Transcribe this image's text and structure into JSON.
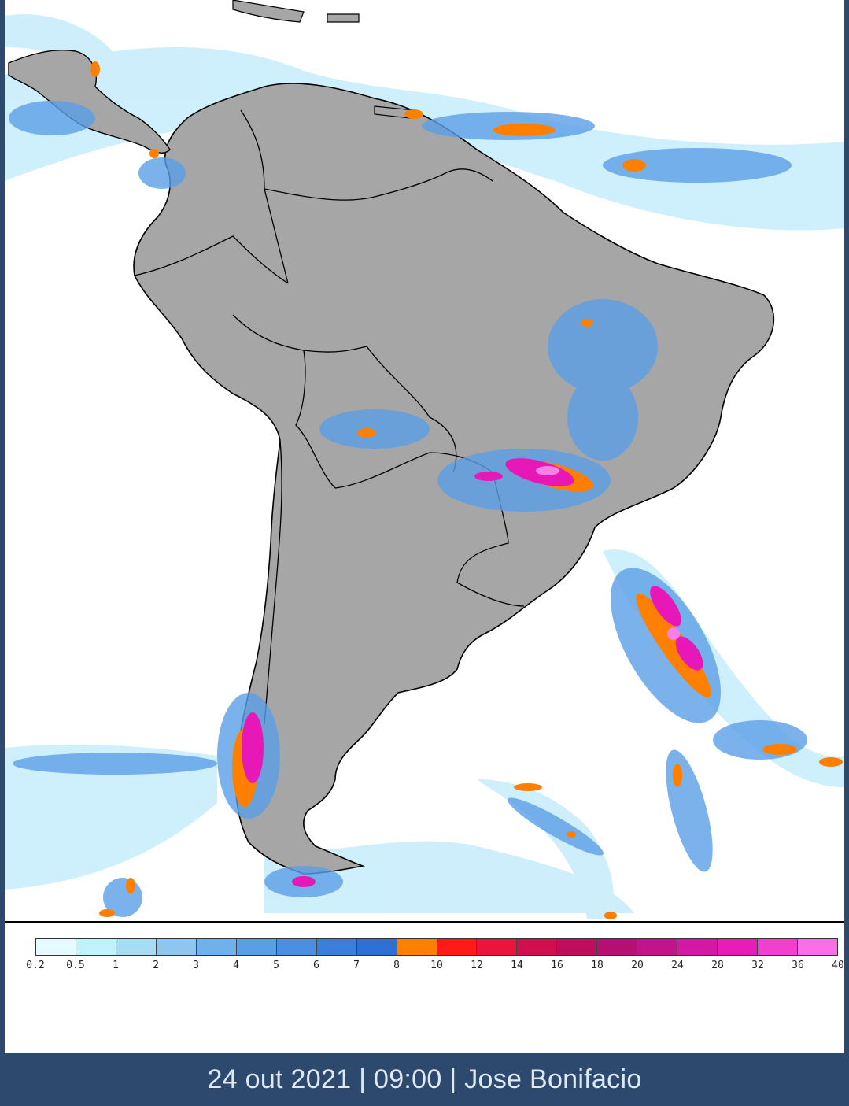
{
  "footer": {
    "caption": "24 out 2021 | 09:00 | Jose Bonifacio"
  },
  "legend": {
    "labels": [
      "0.2",
      "0.5",
      "1",
      "2",
      "3",
      "4",
      "5",
      "6",
      "7",
      "8",
      "10",
      "12",
      "14",
      "16",
      "18",
      "20",
      "24",
      "28",
      "32",
      "36",
      "40"
    ],
    "colors": [
      "#e6fbff",
      "#bff2fb",
      "#a8dcf5",
      "#8ec6f0",
      "#72b0ea",
      "#5a9ee6",
      "#4a8fe2",
      "#3a7fdc",
      "#2d6fd4",
      "#ff7f00",
      "#ff1a1a",
      "#e8163c",
      "#d10f4e",
      "#c00d5e",
      "#b80f74",
      "#c2128c",
      "#d418a2",
      "#e81cb8",
      "#f23fcf",
      "#fa6fe3"
    ]
  },
  "map": {
    "land_color": "#a6a6a6",
    "ocean_color": "#ffffff",
    "precip_light": "#bfe9fb",
    "precip_mid": "#5c9fe6",
    "precip_heavy": "#ff7f00",
    "precip_extreme": "#e818b8"
  }
}
